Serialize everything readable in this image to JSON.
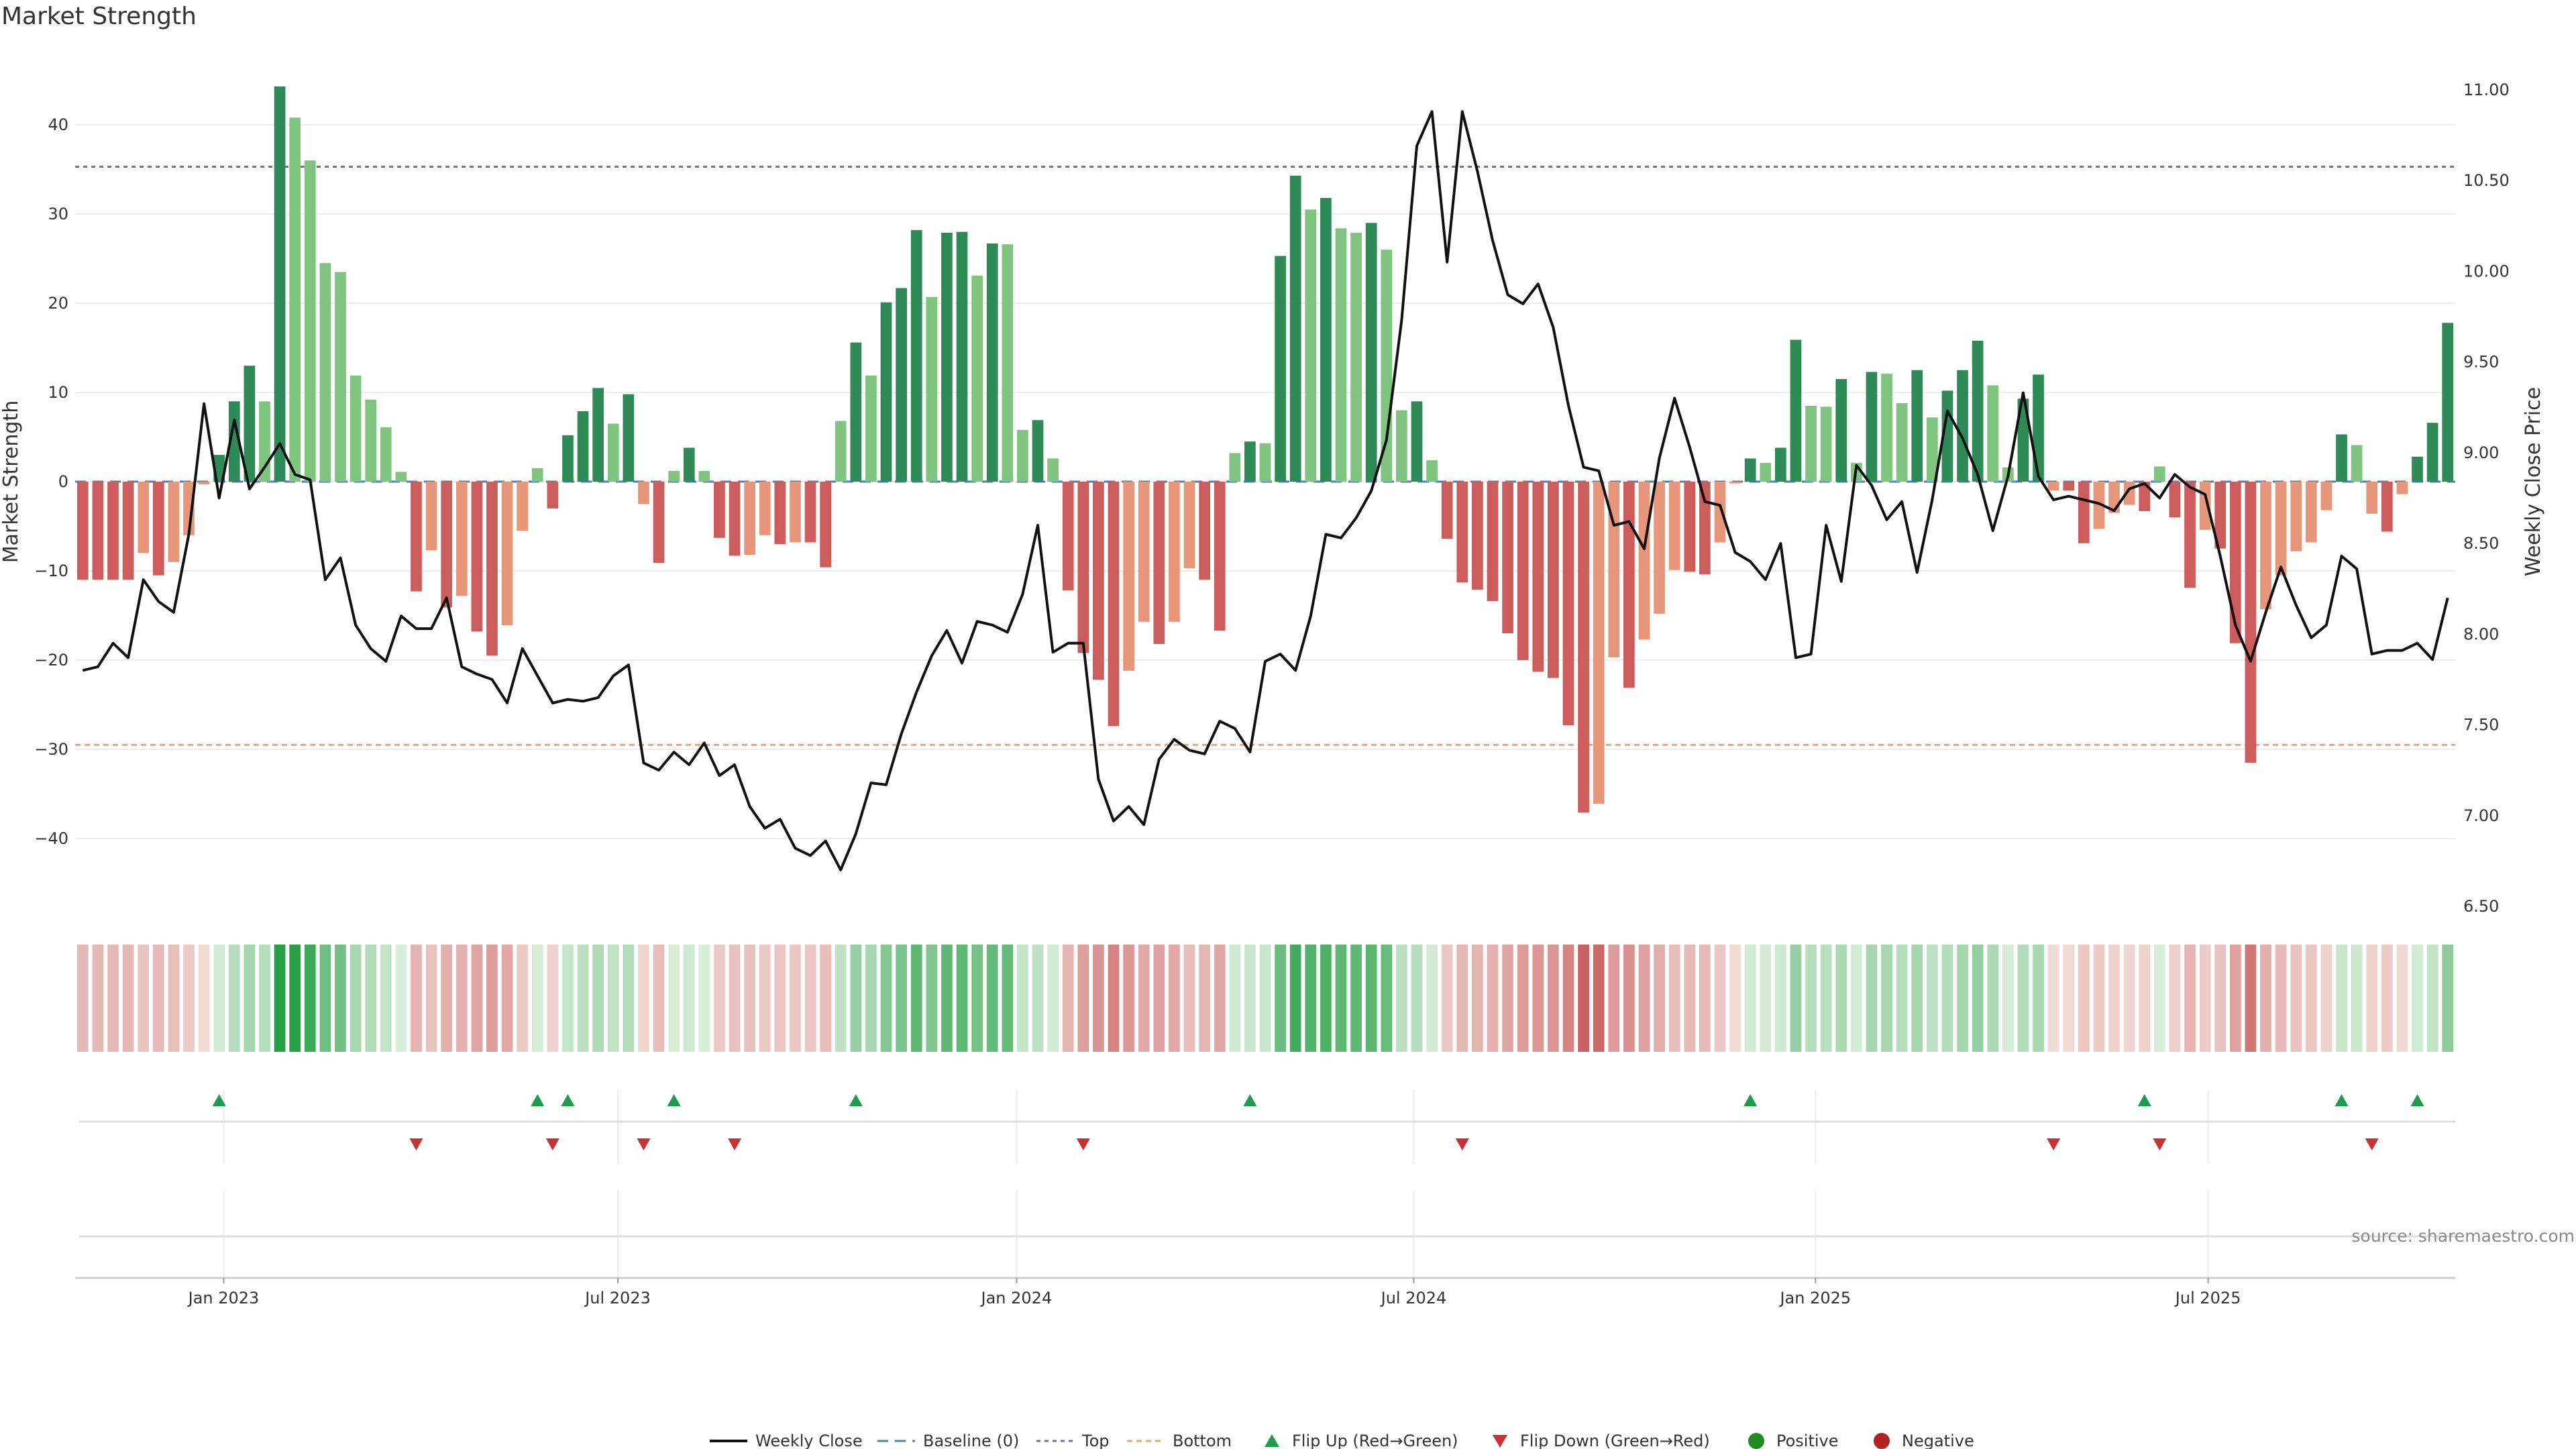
{
  "chart_data": {
    "type": "bar",
    "title": "Market Strength",
    "ylabel_left": "Market Strength",
    "ylabel_right": "Weekly Close Price",
    "ylim_left": [
      -48,
      48
    ],
    "ylim_right": [
      6.5,
      11.2
    ],
    "yticks_left": [
      40,
      30,
      20,
      10,
      0,
      -10,
      -20,
      -30,
      -40
    ],
    "yticks_right": [
      "11.00",
      "10.50",
      "10.00",
      "9.50",
      "9.00",
      "8.50",
      "8.00",
      "7.50",
      "7.00",
      "6.50"
    ],
    "top_threshold": 35.3,
    "bottom_threshold": -29.5,
    "x_tick_labels": [
      "Jan 2023",
      "Jul 2023",
      "Jan 2024",
      "Jul 2024",
      "Jan 2025",
      "Jul 2025"
    ],
    "x_tick_week_index": [
      9.3,
      35.3,
      61.6,
      87.8,
      114.3,
      140.2
    ],
    "strength": [
      -11,
      -11,
      -11,
      -11,
      -8,
      -10.5,
      -9,
      -6,
      -0.3,
      3,
      9,
      13,
      9,
      44.3,
      40.8,
      36,
      24.5,
      23.5,
      11.9,
      9.2,
      6.1,
      1.1,
      -12.3,
      -7.7,
      -14.1,
      -12.8,
      -16.8,
      -19.5,
      -16.1,
      -5.5,
      1.5,
      -3,
      5.2,
      7.9,
      10.5,
      6.5,
      9.8,
      -2.5,
      -9.1,
      1.2,
      3.8,
      1.2,
      -6.3,
      -8.3,
      -8.2,
      -6,
      -7,
      -6.8,
      -6.8,
      -9.6,
      6.8,
      15.6,
      11.9,
      20.1,
      21.7,
      28.2,
      20.7,
      27.9,
      28,
      23.1,
      26.7,
      26.6,
      5.8,
      6.9,
      2.6,
      -12.2,
      -19.2,
      -22.2,
      -27.4,
      -21.2,
      -15.7,
      -18.2,
      -15.7,
      -9.7,
      -11,
      -16.7,
      3.2,
      4.5,
      4.3,
      25.3,
      34.3,
      30.5,
      31.8,
      28.4,
      27.9,
      29,
      26,
      8,
      9,
      2.4,
      -6.4,
      -11.3,
      -12.1,
      -13.4,
      -17,
      -20,
      -21.3,
      -22,
      -27.3,
      -37.1,
      -36.1,
      -19.7,
      -23.1,
      -17.7,
      -14.8,
      -9.9,
      -10.1,
      -10.4,
      -6.8,
      -0.2,
      2.6,
      2.1,
      3.8,
      15.9,
      8.5,
      8.4,
      11.5,
      2.1,
      12.3,
      12.1,
      8.8,
      12.5,
      7.2,
      10.2,
      12.5,
      15.8,
      10.8,
      1.6,
      9.3,
      12,
      -1,
      -1,
      -6.9,
      -5.3,
      -3.5,
      -2.6,
      -3.3,
      1.7,
      -4,
      -11.9,
      -5.4,
      -7.5,
      -18.1,
      -31.5,
      -14.3,
      -10.5,
      -7.8,
      -6.8,
      -3.2,
      5.3,
      4.1,
      -3.6,
      -5.6,
      -1.4,
      2.8,
      6.6,
      17.8
    ],
    "close": [
      7.8,
      7.82,
      7.95,
      7.87,
      8.3,
      8.18,
      8.12,
      8.55,
      9.27,
      8.75,
      9.18,
      8.8,
      8.92,
      9.05,
      8.88,
      8.85,
      8.3,
      8.42,
      8.05,
      7.92,
      7.85,
      8.1,
      8.03,
      8.03,
      8.2,
      7.82,
      7.78,
      7.75,
      7.62,
      7.92,
      7.77,
      7.62,
      7.64,
      7.63,
      7.65,
      7.77,
      7.83,
      7.29,
      7.25,
      7.35,
      7.28,
      7.4,
      7.22,
      7.28,
      7.05,
      6.93,
      6.98,
      6.82,
      6.78,
      6.86,
      6.7,
      6.9,
      7.18,
      7.17,
      7.45,
      7.68,
      7.88,
      8.02,
      7.84,
      8.07,
      8.05,
      8.01,
      8.22,
      8.6,
      7.9,
      7.95,
      7.95,
      7.2,
      6.97,
      7.05,
      6.95,
      7.31,
      7.42,
      7.36,
      7.34,
      7.52,
      7.48,
      7.35,
      7.85,
      7.89,
      7.8,
      8.1,
      8.55,
      8.53,
      8.64,
      8.79,
      9.07,
      9.73,
      10.69,
      10.88,
      10.05,
      10.88,
      10.55,
      10.17,
      9.87,
      9.82,
      9.93,
      9.69,
      9.26,
      8.92,
      8.9,
      8.6,
      8.62,
      8.47,
      8.97,
      9.3,
      9.03,
      8.73,
      8.71,
      8.45,
      8.4,
      8.3,
      8.5,
      7.87,
      7.89,
      8.6,
      8.29,
      8.93,
      8.82,
      8.63,
      8.73,
      8.34,
      8.74,
      9.23,
      9.08,
      8.88,
      8.57,
      8.87,
      9.33,
      8.87,
      8.74,
      8.76,
      8.74,
      8.72,
      8.68,
      8.8,
      8.83,
      8.75,
      8.88,
      8.81,
      8.77,
      8.43,
      8.05,
      7.85,
      8.12,
      8.37,
      8.16,
      7.98,
      8.05,
      8.43,
      8.36,
      7.89,
      7.91,
      7.91,
      7.95,
      7.86,
      8.2
    ],
    "flip_up_week_index": [
      9,
      30,
      32,
      39,
      51,
      77,
      110,
      136,
      149,
      154
    ],
    "flip_down_week_index": [
      22,
      31,
      37,
      43,
      66,
      91,
      130,
      137,
      151
    ],
    "colors": {
      "strong_positive": "#2e8b57",
      "weak_positive": "#7fc47f",
      "strong_negative": "#cd5c5c",
      "weak_negative": "#e8967a",
      "close_line": "#111111",
      "top_line": "#7b68b5",
      "bottom_line": "#f4a070",
      "baseline": "#4682b4",
      "flip_up": "#1e9b4c",
      "flip_down": "#c83232",
      "positive_dot": "#228b22",
      "negative_dot": "#b22222"
    },
    "legend": [
      "Weekly Close",
      "Baseline (0)",
      "Top",
      "Bottom",
      "Flip Up (Red→Green)",
      "Flip Down (Green→Red)",
      "Positive",
      "Negative"
    ],
    "source": "source: sharemaestro.com"
  }
}
